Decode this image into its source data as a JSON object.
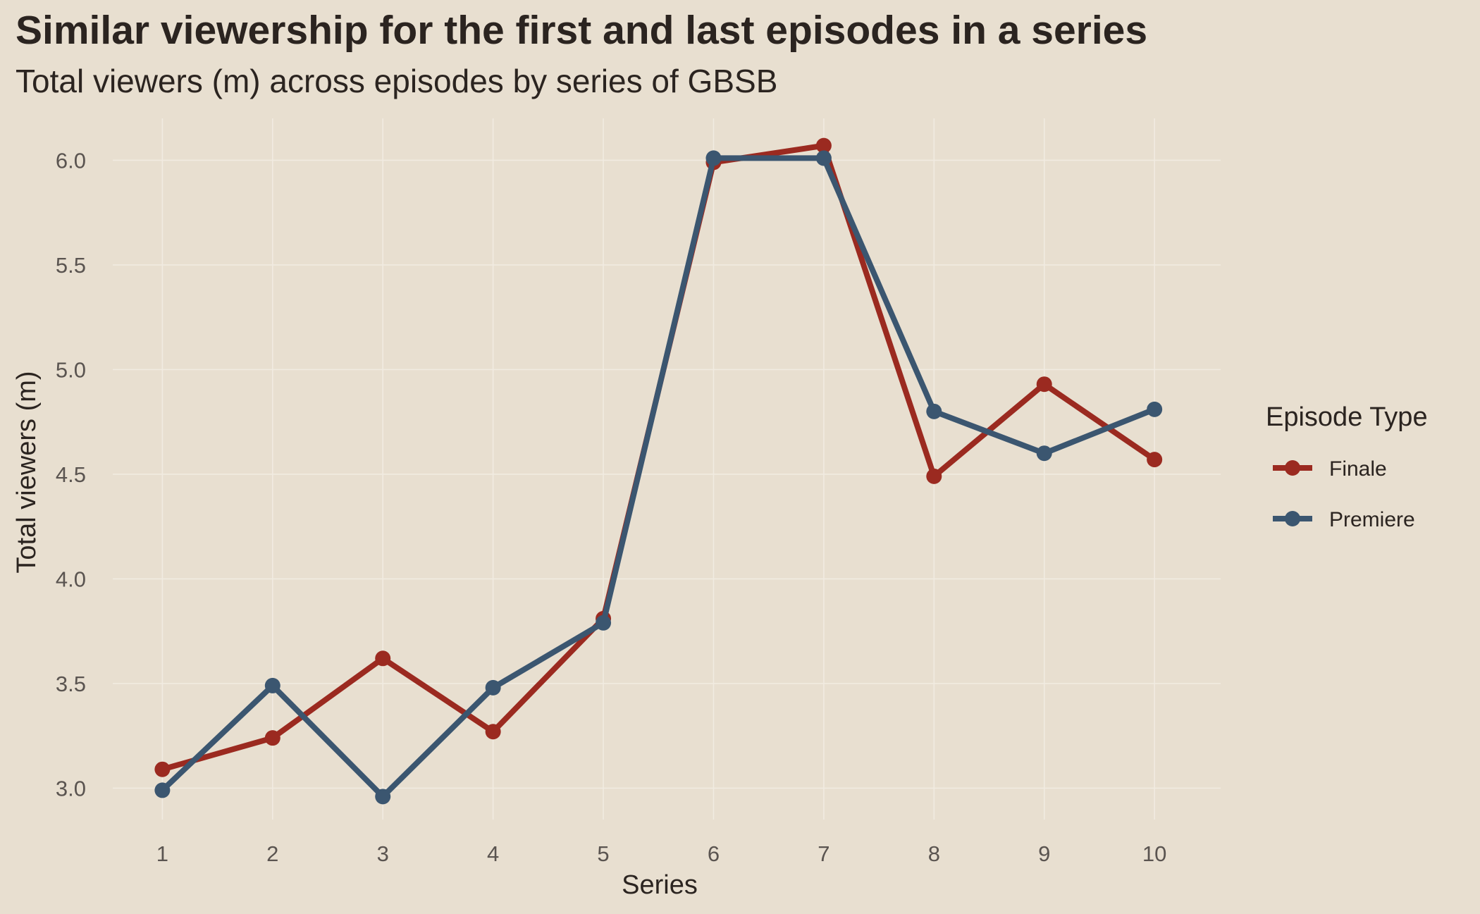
{
  "chart_data": {
    "type": "line",
    "title": "Similar viewership for the first and last episodes in a series",
    "subtitle": "Total viewers (m) across episodes by series of GBSB",
    "xlabel": "Series",
    "ylabel": "Total viewers (m)",
    "x": [
      1,
      2,
      3,
      4,
      5,
      6,
      7,
      8,
      9,
      10
    ],
    "x_tick_labels": [
      "1",
      "2",
      "3",
      "4",
      "5",
      "6",
      "7",
      "8",
      "9",
      "10"
    ],
    "y_ticks": [
      3.0,
      3.5,
      4.0,
      4.5,
      5.0,
      5.5,
      6.0
    ],
    "y_tick_labels": [
      "3.0",
      "3.5",
      "4.0",
      "4.5",
      "5.0",
      "5.5",
      "6.0"
    ],
    "xlim": [
      0.55,
      10.6
    ],
    "ylim": [
      2.85,
      6.2
    ],
    "grid": true,
    "legend": {
      "title": "Episode Type",
      "placement": "right"
    },
    "series": [
      {
        "name": "Finale",
        "color": "#9b2a20",
        "values": [
          3.09,
          3.24,
          3.62,
          3.27,
          3.81,
          5.99,
          6.07,
          4.49,
          4.93,
          4.57
        ]
      },
      {
        "name": "Premiere",
        "color": "#3b5670",
        "values": [
          2.99,
          3.49,
          2.96,
          3.48,
          3.79,
          6.01,
          6.01,
          4.8,
          4.6,
          4.81
        ]
      }
    ]
  }
}
